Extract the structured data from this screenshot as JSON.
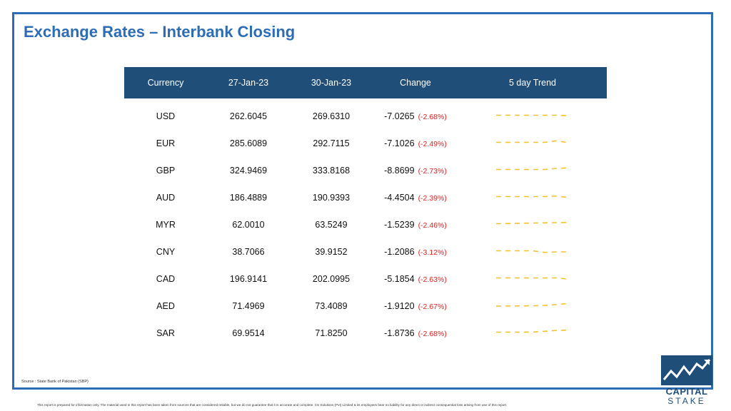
{
  "title": "Exchange Rates – Interbank Closing",
  "table": {
    "headers": [
      "Currency",
      "27-Jan-23",
      "30-Jan-23",
      "Change",
      "5 day Trend"
    ],
    "rows": [
      {
        "currency": "USD",
        "d1": "262.6045",
        "d2": "269.6310",
        "change": "-7.0265",
        "pct": "(-2.68%)",
        "trend": [
          5,
          5,
          5,
          5,
          5,
          5,
          4.5
        ]
      },
      {
        "currency": "EUR",
        "d1": "285.6089",
        "d2": "292.7115",
        "change": "-7.1026",
        "pct": "(-2.49%)",
        "trend": [
          5,
          5,
          5,
          5,
          5,
          6.5,
          4.5
        ]
      },
      {
        "currency": "GBP",
        "d1": "324.9469",
        "d2": "333.8168",
        "change": "-8.8699",
        "pct": "(-2.73%)",
        "trend": [
          5,
          5,
          5,
          5,
          5,
          6,
          6.5
        ]
      },
      {
        "currency": "AUD",
        "d1": "186.4889",
        "d2": "190.9393",
        "change": "-4.4504",
        "pct": "(-2.39%)",
        "trend": [
          5,
          5,
          5,
          5,
          5,
          5.5,
          4
        ]
      },
      {
        "currency": "MYR",
        "d1": "62.0010",
        "d2": "63.5249",
        "change": "-1.5239",
        "pct": "(-2.46%)",
        "trend": [
          5,
          5.2,
          5.4,
          5.6,
          5.8,
          6,
          6.2
        ]
      },
      {
        "currency": "CNY",
        "d1": "38.7066",
        "d2": "39.9152",
        "change": "-1.2086",
        "pct": "(-3.12%)",
        "trend": [
          5,
          5,
          5,
          5,
          3.5,
          4,
          4
        ]
      },
      {
        "currency": "CAD",
        "d1": "196.9141",
        "d2": "202.0995",
        "change": "-5.1854",
        "pct": "(-2.63%)",
        "trend": [
          5,
          5,
          5,
          5,
          5,
          5,
          3.8
        ]
      },
      {
        "currency": "AED",
        "d1": "71.4969",
        "d2": "73.4089",
        "change": "-1.9120",
        "pct": "(-2.67%)",
        "trend": [
          4,
          4.1,
          4.2,
          4.3,
          4.6,
          5.5,
          6.5
        ]
      },
      {
        "currency": "SAR",
        "d1": "69.9514",
        "d2": "71.8250",
        "change": "-1.8736",
        "pct": "(-2.68%)",
        "trend": [
          5,
          5,
          5,
          5.1,
          5.8,
          6.6,
          7
        ]
      }
    ]
  },
  "source": "Source : State Bank of Pakistan (SBP)",
  "disclaimer": "This report is prepared for information only. The material used in this report has been taken from sources that are considered reliable, but we do not guarantee that it is accurate and complete. CS Solutions (Pvt) Limited & its employees bear no liability for any direct or indirect consequential loss arising from use of this report.",
  "logo": {
    "line1": "CAPITAL",
    "line2": "STAKE"
  },
  "colors": {
    "accent": "#2e6db4",
    "header_bg": "#1f4e79",
    "negative": "#e02020",
    "trend": "#f2c230"
  }
}
